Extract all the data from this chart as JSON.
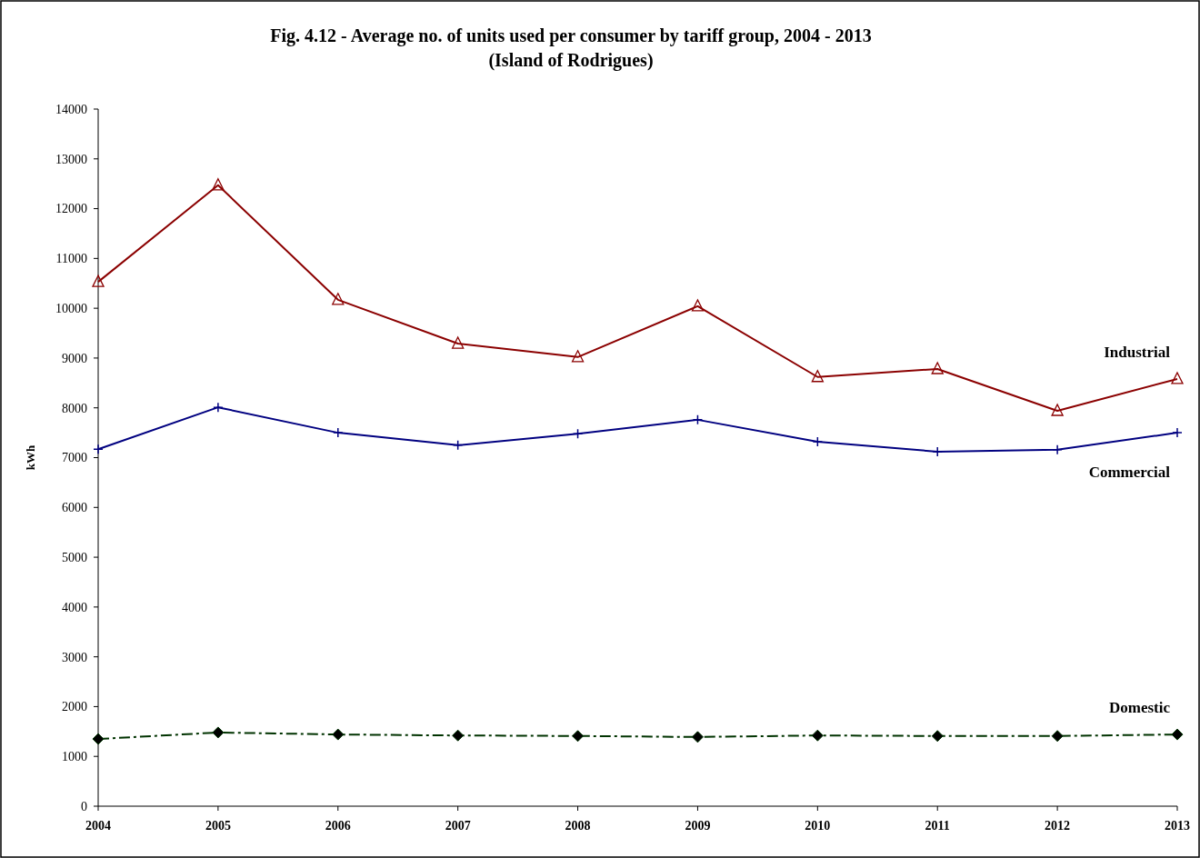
{
  "chart_data": {
    "type": "line",
    "title": "Fig. 4.12 - Average no. of units used per consumer by tariff group, 2004 - 2013",
    "subtitle": "(Island of Rodrigues)",
    "ylabel": "kWh",
    "categories": [
      "2004",
      "2005",
      "2006",
      "2007",
      "2008",
      "2009",
      "2010",
      "2011",
      "2012",
      "2013"
    ],
    "ylim": [
      0,
      14000
    ],
    "yticks": [
      0,
      1000,
      2000,
      3000,
      4000,
      5000,
      6000,
      7000,
      8000,
      9000,
      10000,
      11000,
      12000,
      13000,
      14000
    ],
    "grid": false,
    "legend": false,
    "series": [
      {
        "name": "Industrial",
        "color": "#8b0000",
        "marker": "triangle",
        "line_style": "solid",
        "values": [
          10530,
          12470,
          10170,
          9290,
          9020,
          10040,
          8620,
          8780,
          7940,
          8580
        ]
      },
      {
        "name": "Commercial",
        "color": "#000080",
        "marker": "cross",
        "line_style": "solid",
        "values": [
          7170,
          8010,
          7500,
          7250,
          7480,
          7760,
          7320,
          7120,
          7160,
          7500
        ]
      },
      {
        "name": "Domestic",
        "color": "#003300",
        "marker": "diamond",
        "line_style": "dashed",
        "values": [
          1350,
          1480,
          1440,
          1420,
          1410,
          1390,
          1420,
          1410,
          1410,
          1440
        ]
      }
    ]
  }
}
